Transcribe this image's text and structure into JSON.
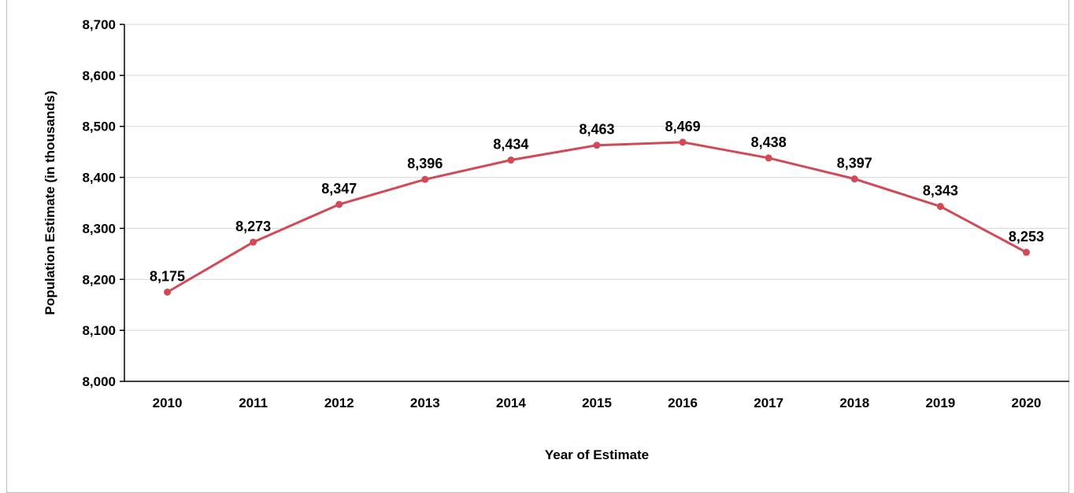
{
  "chart_data": {
    "type": "line",
    "title": "",
    "xlabel": "Year of Estimate",
    "ylabel": "Population Estimate (in thousands)",
    "categories": [
      "2010",
      "2011",
      "2012",
      "2013",
      "2014",
      "2015",
      "2016",
      "2017",
      "2018",
      "2019",
      "2020"
    ],
    "series": [
      {
        "values": [
          8175,
          8273,
          8347,
          8396,
          8434,
          8463,
          8469,
          8438,
          8397,
          8343,
          8253
        ],
        "labels": [
          "8,175",
          "8,273",
          "8,347",
          "8,396",
          "8,434",
          "8,463",
          "8,469",
          "8,438",
          "8,397",
          "8,343",
          "8,253"
        ],
        "color": "#d04a58"
      }
    ],
    "ylim": [
      8000,
      8700
    ],
    "yticks": [
      8000,
      8100,
      8200,
      8300,
      8400,
      8500,
      8600,
      8700
    ],
    "ytick_labels": [
      "8,000",
      "8,100",
      "8,200",
      "8,300",
      "8,400",
      "8,500",
      "8,600",
      "8,700"
    ],
    "grid": true,
    "legend": "none",
    "colors": {
      "line": "#d04a58",
      "grid": "#d9d9d9",
      "axis": "#000000"
    }
  }
}
